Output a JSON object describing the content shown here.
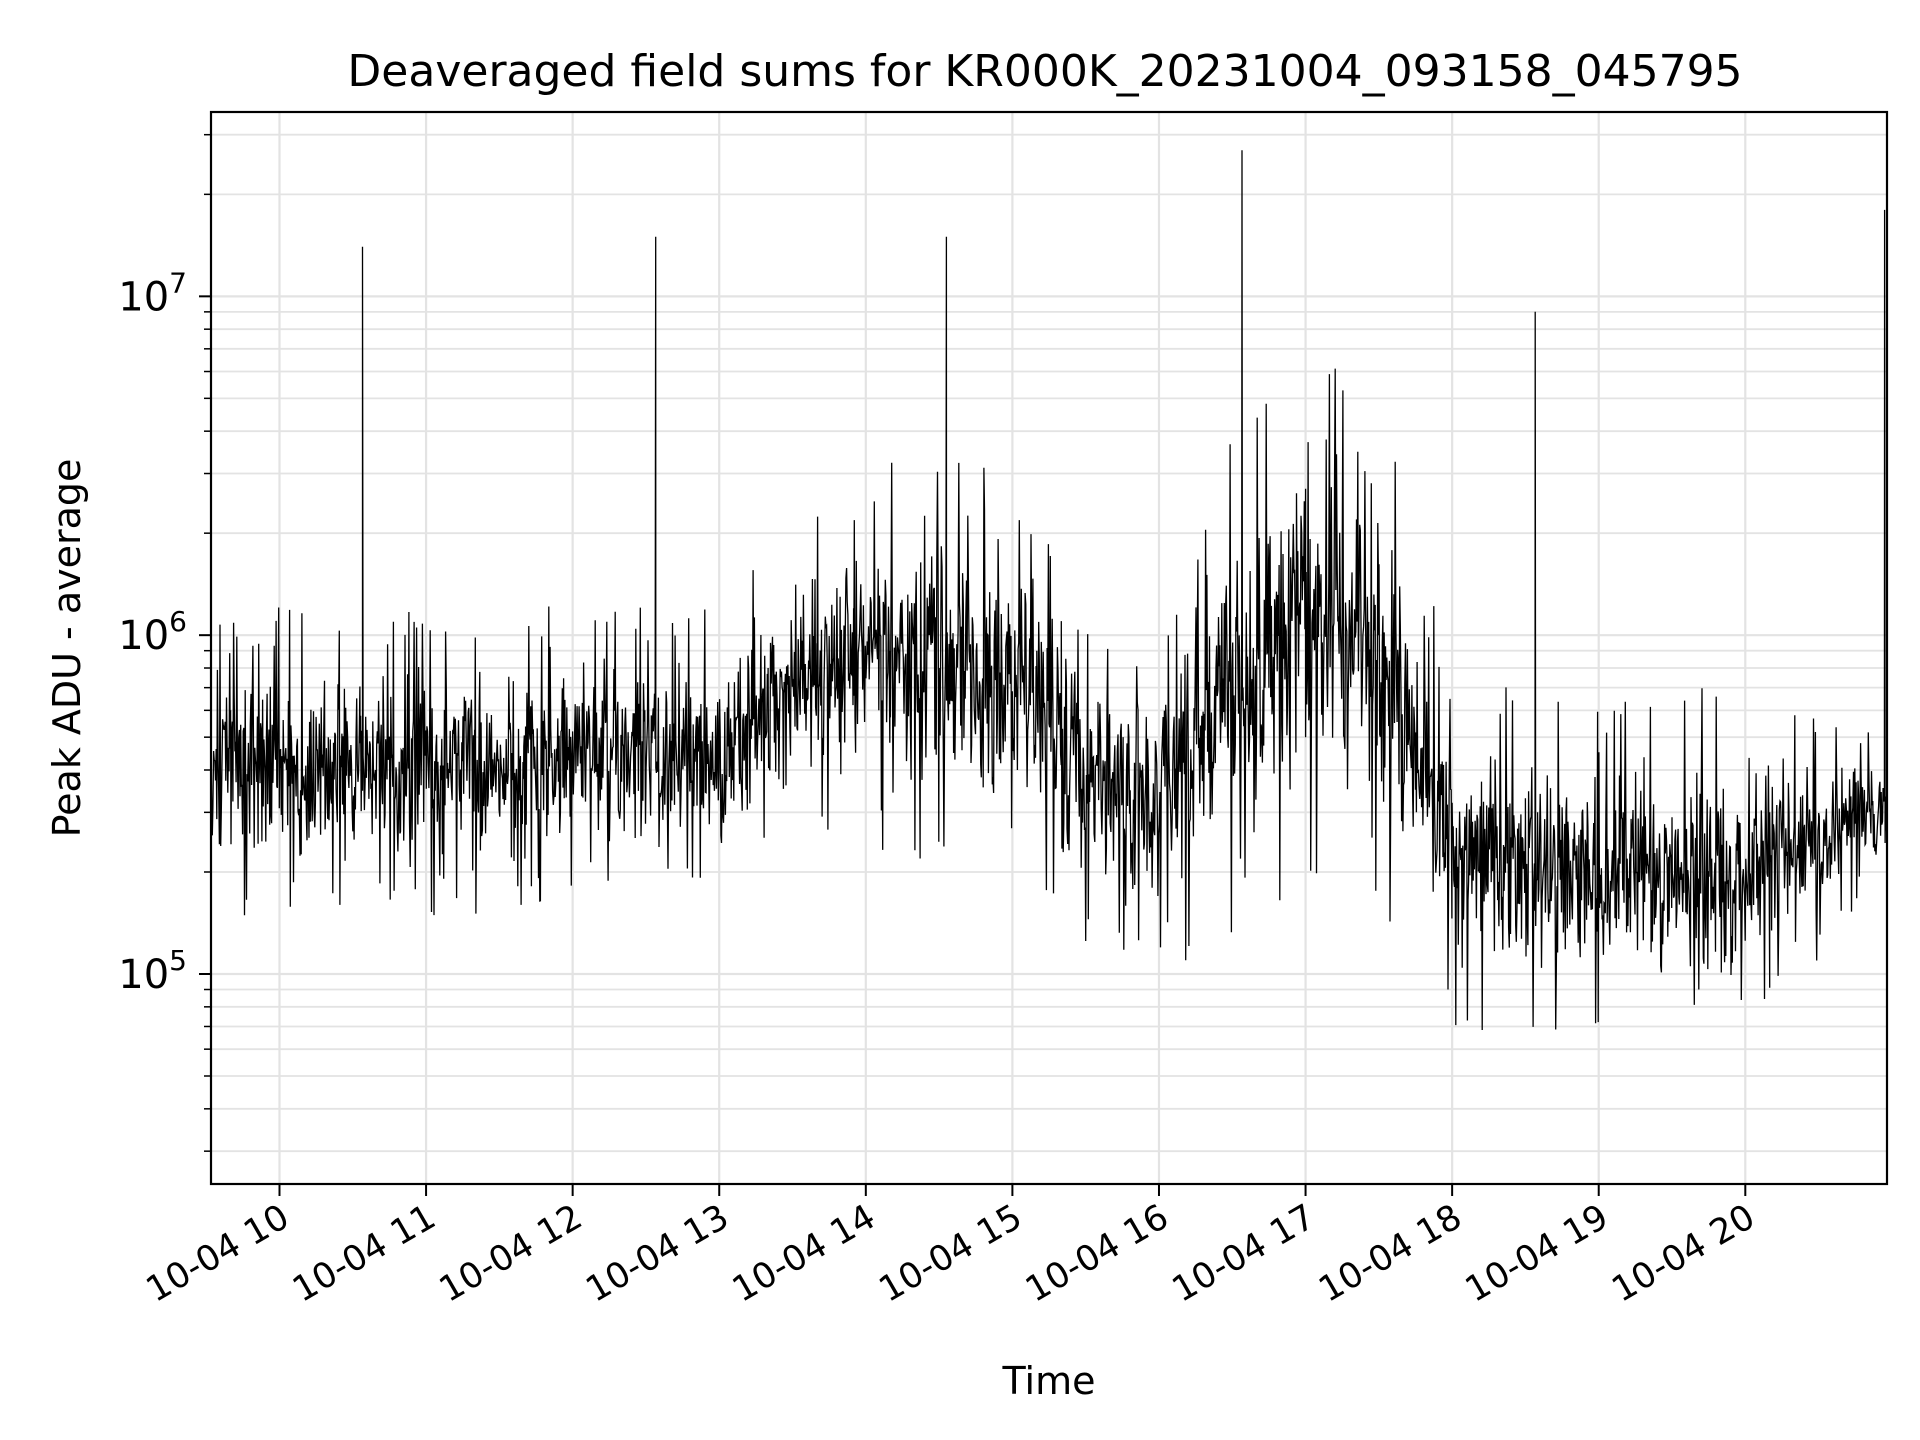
{
  "chart_data": {
    "type": "line",
    "title": "Deaveraged field sums for KR000K_20231004_093158_045795",
    "xlabel": "Time",
    "ylabel": "Peak ADU - average",
    "xlim": [
      "2023-10-04 09:31:58",
      "2023-10-04 20:58:00"
    ],
    "ylim": [
      24000,
      35000000
    ],
    "yscale": "log",
    "grid": true,
    "line_color": "#000000",
    "x_ticks": [
      {
        "value": "2023-10-04 10:00",
        "label": "10-04 10"
      },
      {
        "value": "2023-10-04 11:00",
        "label": "10-04 11"
      },
      {
        "value": "2023-10-04 12:00",
        "label": "10-04 12"
      },
      {
        "value": "2023-10-04 13:00",
        "label": "10-04 13"
      },
      {
        "value": "2023-10-04 14:00",
        "label": "10-04 14"
      },
      {
        "value": "2023-10-04 15:00",
        "label": "10-04 15"
      },
      {
        "value": "2023-10-04 16:00",
        "label": "10-04 16"
      },
      {
        "value": "2023-10-04 17:00",
        "label": "10-04 17"
      },
      {
        "value": "2023-10-04 18:00",
        "label": "10-04 18"
      },
      {
        "value": "2023-10-04 19:00",
        "label": "10-04 19"
      },
      {
        "value": "2023-10-04 20:00",
        "label": "10-04 20"
      }
    ],
    "y_ticks": [
      {
        "value": 100000,
        "base": "10",
        "exp": "5"
      },
      {
        "value": 1000000,
        "base": "10",
        "exp": "6"
      },
      {
        "value": 10000000,
        "base": "10",
        "exp": "7"
      }
    ],
    "series": [
      {
        "x": [
          "2023-10-04 09:32",
          "2023-10-04 09:40",
          "2023-10-04 09:48",
          "2023-10-04 10:00",
          "2023-10-04 10:20",
          "2023-10-04 10:33",
          "2023-10-04 10:34",
          "2023-10-04 10:45",
          "2023-10-04 11:00",
          "2023-10-04 11:20",
          "2023-10-04 11:40",
          "2023-10-04 12:00",
          "2023-10-04 12:20",
          "2023-10-04 12:33",
          "2023-10-04 12:34",
          "2023-10-04 12:45",
          "2023-10-04 13:00",
          "2023-10-04 13:20",
          "2023-10-04 13:40",
          "2023-10-04 13:55",
          "2023-10-04 14:10",
          "2023-10-04 14:30",
          "2023-10-04 14:33",
          "2023-10-04 14:34",
          "2023-10-04 14:50",
          "2023-10-04 15:10",
          "2023-10-04 15:20",
          "2023-10-04 15:35",
          "2023-10-04 15:50",
          "2023-10-04 16:10",
          "2023-10-04 16:25",
          "2023-10-04 16:33",
          "2023-10-04 16:34",
          "2023-10-04 16:45",
          "2023-10-04 17:00",
          "2023-10-04 17:15",
          "2023-10-04 17:30",
          "2023-10-04 17:45",
          "2023-10-04 18:00",
          "2023-10-04 18:15",
          "2023-10-04 18:30",
          "2023-10-04 18:34",
          "2023-10-04 18:35",
          "2023-10-04 18:50",
          "2023-10-04 19:10",
          "2023-10-04 19:30",
          "2023-10-04 19:50",
          "2023-10-04 20:10",
          "2023-10-04 20:30",
          "2023-10-04 20:50",
          "2023-10-04 20:57"
        ],
        "y": [
          450000,
          600000,
          480000,
          460000,
          500000,
          480000,
          14000000,
          500000,
          520000,
          500000,
          470000,
          520000,
          500000,
          520000,
          15000000,
          500000,
          550000,
          800000,
          700000,
          1200000,
          900000,
          800000,
          15000000,
          900000,
          1000000,
          900000,
          1100000,
          450000,
          420000,
          420000,
          600000,
          800000,
          27000000,
          700000,
          500000,
          1200000,
          1000000,
          350000,
          320000,
          310000,
          330000,
          9000000,
          300000,
          280000,
          300000,
          290000,
          270000,
          300000,
          280000,
          300000,
          18000000
        ],
        "envelope": [
          {
            "x": "2023-10-04 09:32",
            "low": 150000,
            "high": 900000
          },
          {
            "x": "2023-10-04 10:00",
            "low": 170000,
            "high": 1000000
          },
          {
            "x": "2023-10-04 10:30",
            "low": 180000,
            "high": 900000
          },
          {
            "x": "2023-10-04 11:00",
            "low": 180000,
            "high": 1000000
          },
          {
            "x": "2023-10-04 11:30",
            "low": 170000,
            "high": 1000000
          },
          {
            "x": "2023-10-04 12:00",
            "low": 200000,
            "high": 1000000
          },
          {
            "x": "2023-10-04 12:30",
            "low": 200000,
            "high": 1000000
          },
          {
            "x": "2023-10-04 13:00",
            "low": 200000,
            "high": 1000000
          },
          {
            "x": "2023-10-04 13:30",
            "low": 280000,
            "high": 1800000
          },
          {
            "x": "2023-10-04 14:00",
            "low": 300000,
            "high": 2500000
          },
          {
            "x": "2023-10-04 14:30",
            "low": 260000,
            "high": 2500000
          },
          {
            "x": "2023-10-04 15:00",
            "low": 250000,
            "high": 2500000
          },
          {
            "x": "2023-10-04 15:30",
            "low": 150000,
            "high": 900000
          },
          {
            "x": "2023-10-04 16:00",
            "low": 130000,
            "high": 800000
          },
          {
            "x": "2023-10-04 16:30",
            "low": 170000,
            "high": 3000000
          },
          {
            "x": "2023-10-04 17:00",
            "low": 250000,
            "high": 4500000
          },
          {
            "x": "2023-10-04 17:30",
            "low": 200000,
            "high": 4000000
          },
          {
            "x": "2023-10-04 18:00",
            "low": 90000,
            "high": 600000
          },
          {
            "x": "2023-10-04 18:30",
            "low": 80000,
            "high": 550000
          },
          {
            "x": "2023-10-04 19:00",
            "low": 80000,
            "high": 550000
          },
          {
            "x": "2023-10-04 19:30",
            "low": 60000,
            "high": 550000
          },
          {
            "x": "2023-10-04 20:00",
            "low": 80000,
            "high": 550000
          },
          {
            "x": "2023-10-04 20:30",
            "low": 130000,
            "high": 500000
          },
          {
            "x": "2023-10-04 20:58",
            "low": 200000,
            "high": 500000
          }
        ]
      }
    ]
  }
}
